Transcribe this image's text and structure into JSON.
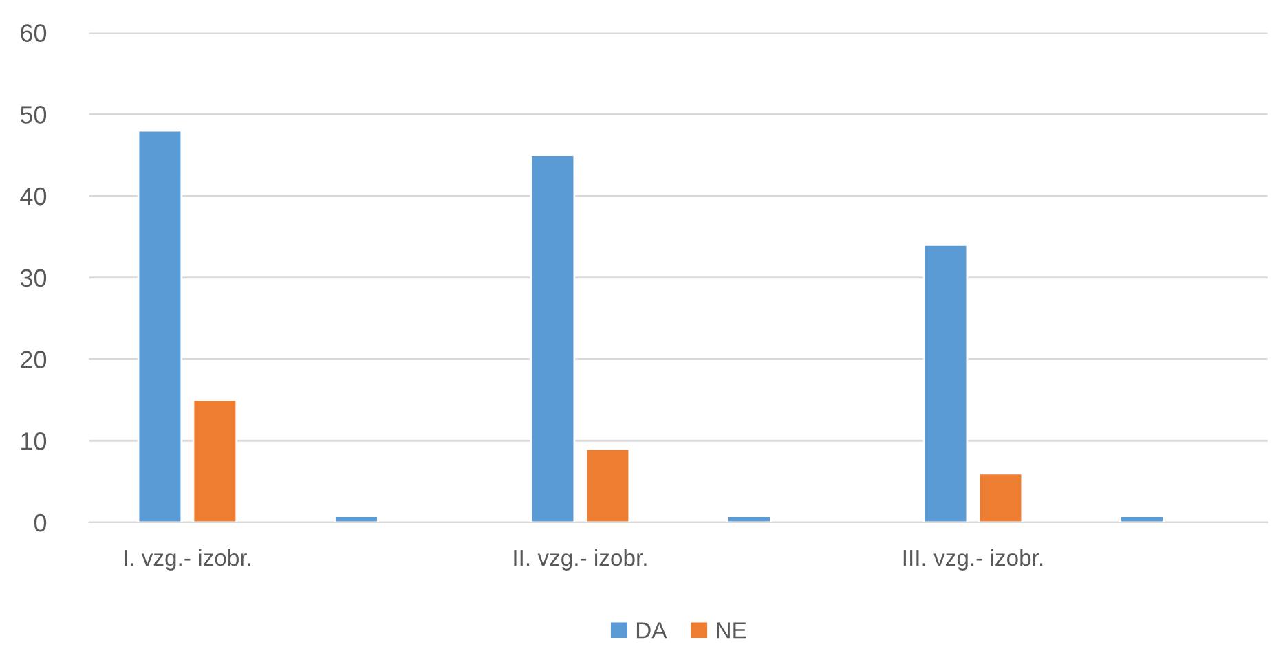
{
  "chart_data": {
    "type": "bar",
    "categories": [
      "I. vzg.- izobr.",
      null,
      "II. vzg.- izobr.",
      null,
      "III. vzg.- izobr.",
      null
    ],
    "series": [
      {
        "name": "DA",
        "color": "#5b9bd5",
        "values": [
          48,
          0.8,
          45,
          0.8,
          34,
          0.8
        ]
      },
      {
        "name": "NE",
        "color": "#ed7d31",
        "values": [
          15,
          null,
          9,
          null,
          6,
          null
        ]
      }
    ],
    "ylim": [
      0,
      60
    ],
    "yticks": [
      0,
      10,
      20,
      30,
      40,
      50,
      60
    ],
    "grid": "y",
    "legend": "bottom"
  }
}
